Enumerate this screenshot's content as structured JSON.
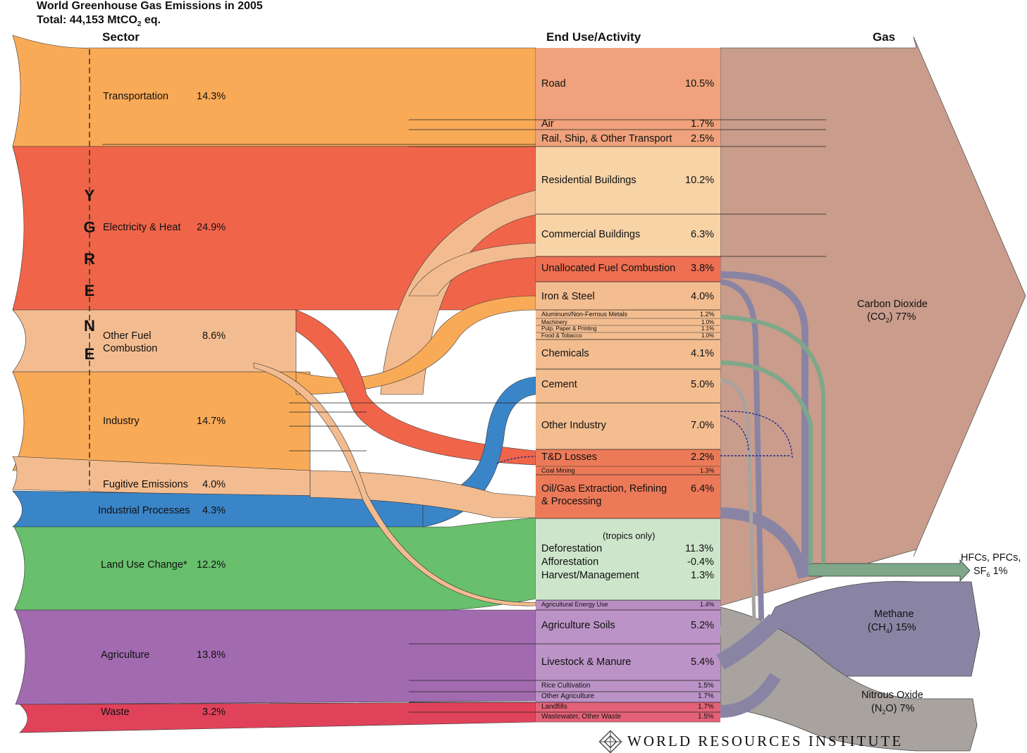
{
  "title": {
    "line1": "World Greenhouse Gas Emissions in 2005",
    "line2": "Total: 44,153 MtCO",
    "line2_sub": "2",
    "line2_tail": " eq."
  },
  "headers": {
    "sector": "Sector",
    "end_use": "End Use/Activity",
    "gas": "Gas"
  },
  "energy_letters": [
    "E",
    "N",
    "E",
    "R",
    "G",
    "Y"
  ],
  "sectors": [
    {
      "label": "Transportation",
      "pct": "14.3%",
      "color": "#f8aa57"
    },
    {
      "label": "Electricity & Heat",
      "pct": "24.9%",
      "color": "#f0654a"
    },
    {
      "label": "Other Fuel",
      "label2": "Combustion",
      "pct": "8.6%",
      "color": "#f3bc90"
    },
    {
      "label": "Industry",
      "pct": "14.7%",
      "color": "#f8aa57"
    },
    {
      "label": "Fugitive Emissions",
      "pct": "4.0%",
      "color": "#f3bc90"
    },
    {
      "label": "Industrial Processes",
      "pct": "4.3%",
      "color": "#3a85c8"
    },
    {
      "label": "Land Use Change*",
      "pct": "12.2%",
      "color": "#68bf6c"
    },
    {
      "label": "Agriculture",
      "pct": "13.8%",
      "color": "#a26bb0"
    },
    {
      "label": "Waste",
      "pct": "3.2%",
      "color": "#e0425a"
    }
  ],
  "end_uses": {
    "road": {
      "label": "Road",
      "pct": "10.5%"
    },
    "air": {
      "label": "Air",
      "pct": "1.7%"
    },
    "rail": {
      "label": "Rail, Ship, & Other Transport",
      "pct": "2.5%"
    },
    "residential": {
      "label": "Residential Buildings",
      "pct": "10.2%"
    },
    "commercial": {
      "label": "Commercial Buildings",
      "pct": "6.3%"
    },
    "unallocated": {
      "label": "Unallocated Fuel Combustion",
      "pct": "3.8%"
    },
    "iron": {
      "label": "Iron & Steel",
      "pct": "4.0%"
    },
    "aluminum": {
      "label": "Aluminum/Non-Ferrous Metals",
      "pct": "1.2%"
    },
    "machinery": {
      "label": "Machinery",
      "pct": "1.0%"
    },
    "pulp": {
      "label": "Pulp, Paper & Printing",
      "pct": "1.1%"
    },
    "food": {
      "label": "Food & Tobacco",
      "pct": "1.0%"
    },
    "chemicals": {
      "label": "Chemicals",
      "pct": "4.1%"
    },
    "cement": {
      "label": "Cement",
      "pct": "5.0%"
    },
    "other_industry": {
      "label": "Other Industry",
      "pct": "7.0%"
    },
    "td": {
      "label": "T&D Losses",
      "pct": "2.2%"
    },
    "coal": {
      "label": "Coal Mining",
      "pct": "1.3%"
    },
    "oilgas": {
      "label": "Oil/Gas Extraction, Refining",
      "label2": "& Processing",
      "pct": "6.4%"
    },
    "tropics": "(tropics only)",
    "deforestation": {
      "label": "Deforestation",
      "pct": "11.3%"
    },
    "afforestation": {
      "label": "Afforestation",
      "pct": "-0.4%"
    },
    "harvest": {
      "label": "Harvest/Management",
      "pct": "1.3%"
    },
    "ag_energy": {
      "label": "Agricultural Energy Use",
      "pct": "1.4%"
    },
    "ag_soils": {
      "label": "Agriculture Soils",
      "pct": "5.2%"
    },
    "livestock": {
      "label": "Livestock & Manure",
      "pct": "5.4%"
    },
    "rice": {
      "label": "Rice Cultivation",
      "pct": "1.5%"
    },
    "other_ag": {
      "label": "Other Agriculture",
      "pct": "1.7%"
    },
    "landfills": {
      "label": "Landfills",
      "pct": "1.7%"
    },
    "wastewater": {
      "label": "Wastewater, Other Waste",
      "pct": "1.5%"
    }
  },
  "gases": {
    "co2": {
      "line1": "Carbon Dioxide",
      "line2a": "(CO",
      "sub": "2",
      "line2b": ")  77%",
      "color": "#c99c8c"
    },
    "ch4": {
      "line1": "Methane",
      "line2a": "(CH",
      "sub": "4",
      "line2b": ")  15%",
      "color": "#8a84a4"
    },
    "n2o": {
      "line1": "Nitrous Oxide",
      "line2a": "(N",
      "sub": "2",
      "line2b": "O)  7%",
      "color": "#a8a39f"
    },
    "hfc": {
      "line1": "HFCs, PFCs,",
      "line2a": "SF",
      "sub": "6",
      "line2b": "  1%",
      "color": "#7ea889"
    }
  },
  "footer": "WORLD RESOURCES INSTITUTE",
  "colors": {
    "transport_end": "#efa27b",
    "buildings_end": "#f7d3a6",
    "unallocated_end": "#ee6f52",
    "industry_end": "#f3bd90",
    "energy_red_end": "#ec7a58",
    "landuse_end": "#cde6cb",
    "agenergy_end": "#b98ec3",
    "ag_end": "#bb93c6",
    "waste_end": "#e46277"
  }
}
